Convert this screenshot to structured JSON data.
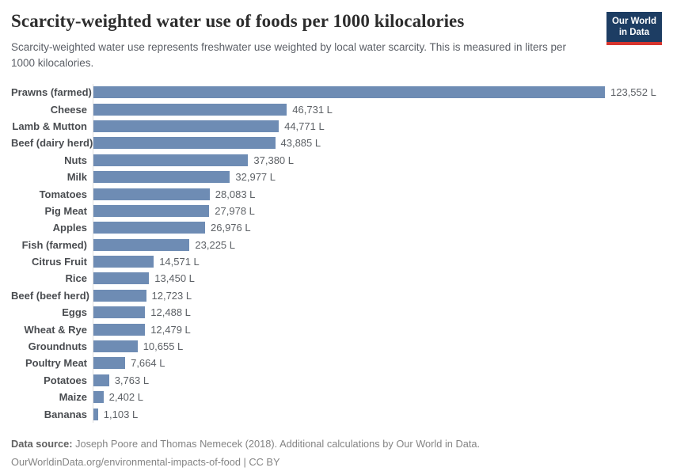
{
  "header": {
    "title": "Scarcity-weighted water use of foods per 1000 kilocalories",
    "subtitle": "Scarcity-weighted water use represents freshwater use weighted by local water scarcity. This is measured in liters per 1000 kilocalories.",
    "logo": {
      "line1": "Our World",
      "line2": "in Data"
    }
  },
  "chart_data": {
    "type": "bar",
    "orientation": "horizontal",
    "title": "Scarcity-weighted water use of foods per 1000 kilocalories",
    "xlabel": "",
    "ylabel": "",
    "unit": "liters per 1000 kilocalories",
    "grid": false,
    "legend_position": "none",
    "xlim": [
      0,
      123552
    ],
    "xmax": 123552,
    "categories": [
      "Prawns (farmed)",
      "Cheese",
      "Lamb & Mutton",
      "Beef (dairy herd)",
      "Nuts",
      "Milk",
      "Tomatoes",
      "Pig Meat",
      "Apples",
      "Fish (farmed)",
      "Citrus Fruit",
      "Rice",
      "Beef (beef herd)",
      "Eggs",
      "Wheat & Rye",
      "Groundnuts",
      "Poultry Meat",
      "Potatoes",
      "Maize",
      "Bananas"
    ],
    "values": [
      123552,
      46731,
      44771,
      43885,
      37380,
      32977,
      28083,
      27978,
      26976,
      23225,
      14571,
      13450,
      12723,
      12488,
      12479,
      10655,
      7664,
      3763,
      2402,
      1103
    ],
    "value_labels": [
      "123,552 L",
      "46,731 L",
      "44,771 L",
      "43,885 L",
      "37,380 L",
      "32,977 L",
      "28,083 L",
      "27,978 L",
      "26,976 L",
      "23,225 L",
      "14,571 L",
      "13,450 L",
      "12,723 L",
      "12,488 L",
      "12,479 L",
      "10,655 L",
      "7,664 L",
      "3,763 L",
      "2,402 L",
      "1,103 L"
    ],
    "bar_color": "#6e8cb4",
    "axis_color": "#e0e0e0"
  },
  "footer": {
    "source_label": "Data source:",
    "source_text": " Joseph Poore and Thomas Nemecek (2018). Additional calculations by Our World in Data.",
    "license_line": "OurWorldinData.org/environmental-impacts-of-food | CC BY"
  }
}
